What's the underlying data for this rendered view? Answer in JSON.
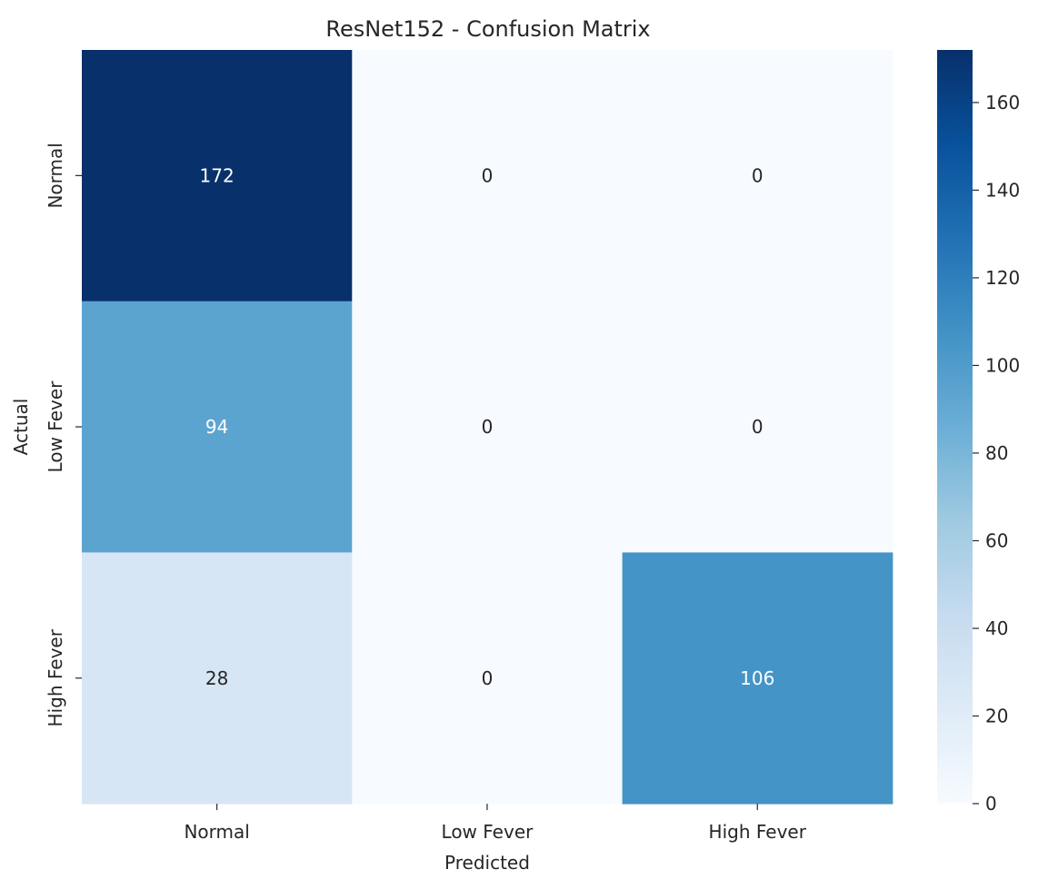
{
  "chart_data": {
    "type": "heatmap",
    "title": "ResNet152 - Confusion Matrix",
    "xlabel": "Predicted",
    "ylabel": "Actual",
    "x_categories": [
      "Normal",
      "Low Fever",
      "High Fever"
    ],
    "y_categories": [
      "Normal",
      "Low Fever",
      "High Fever"
    ],
    "values": [
      [
        172,
        0,
        0
      ],
      [
        94,
        0,
        0
      ],
      [
        28,
        0,
        106
      ]
    ],
    "colormap": "Blues",
    "colorbar": {
      "range": [
        0,
        172
      ],
      "ticks": [
        0,
        20,
        40,
        60,
        80,
        100,
        120,
        140,
        160
      ]
    }
  }
}
